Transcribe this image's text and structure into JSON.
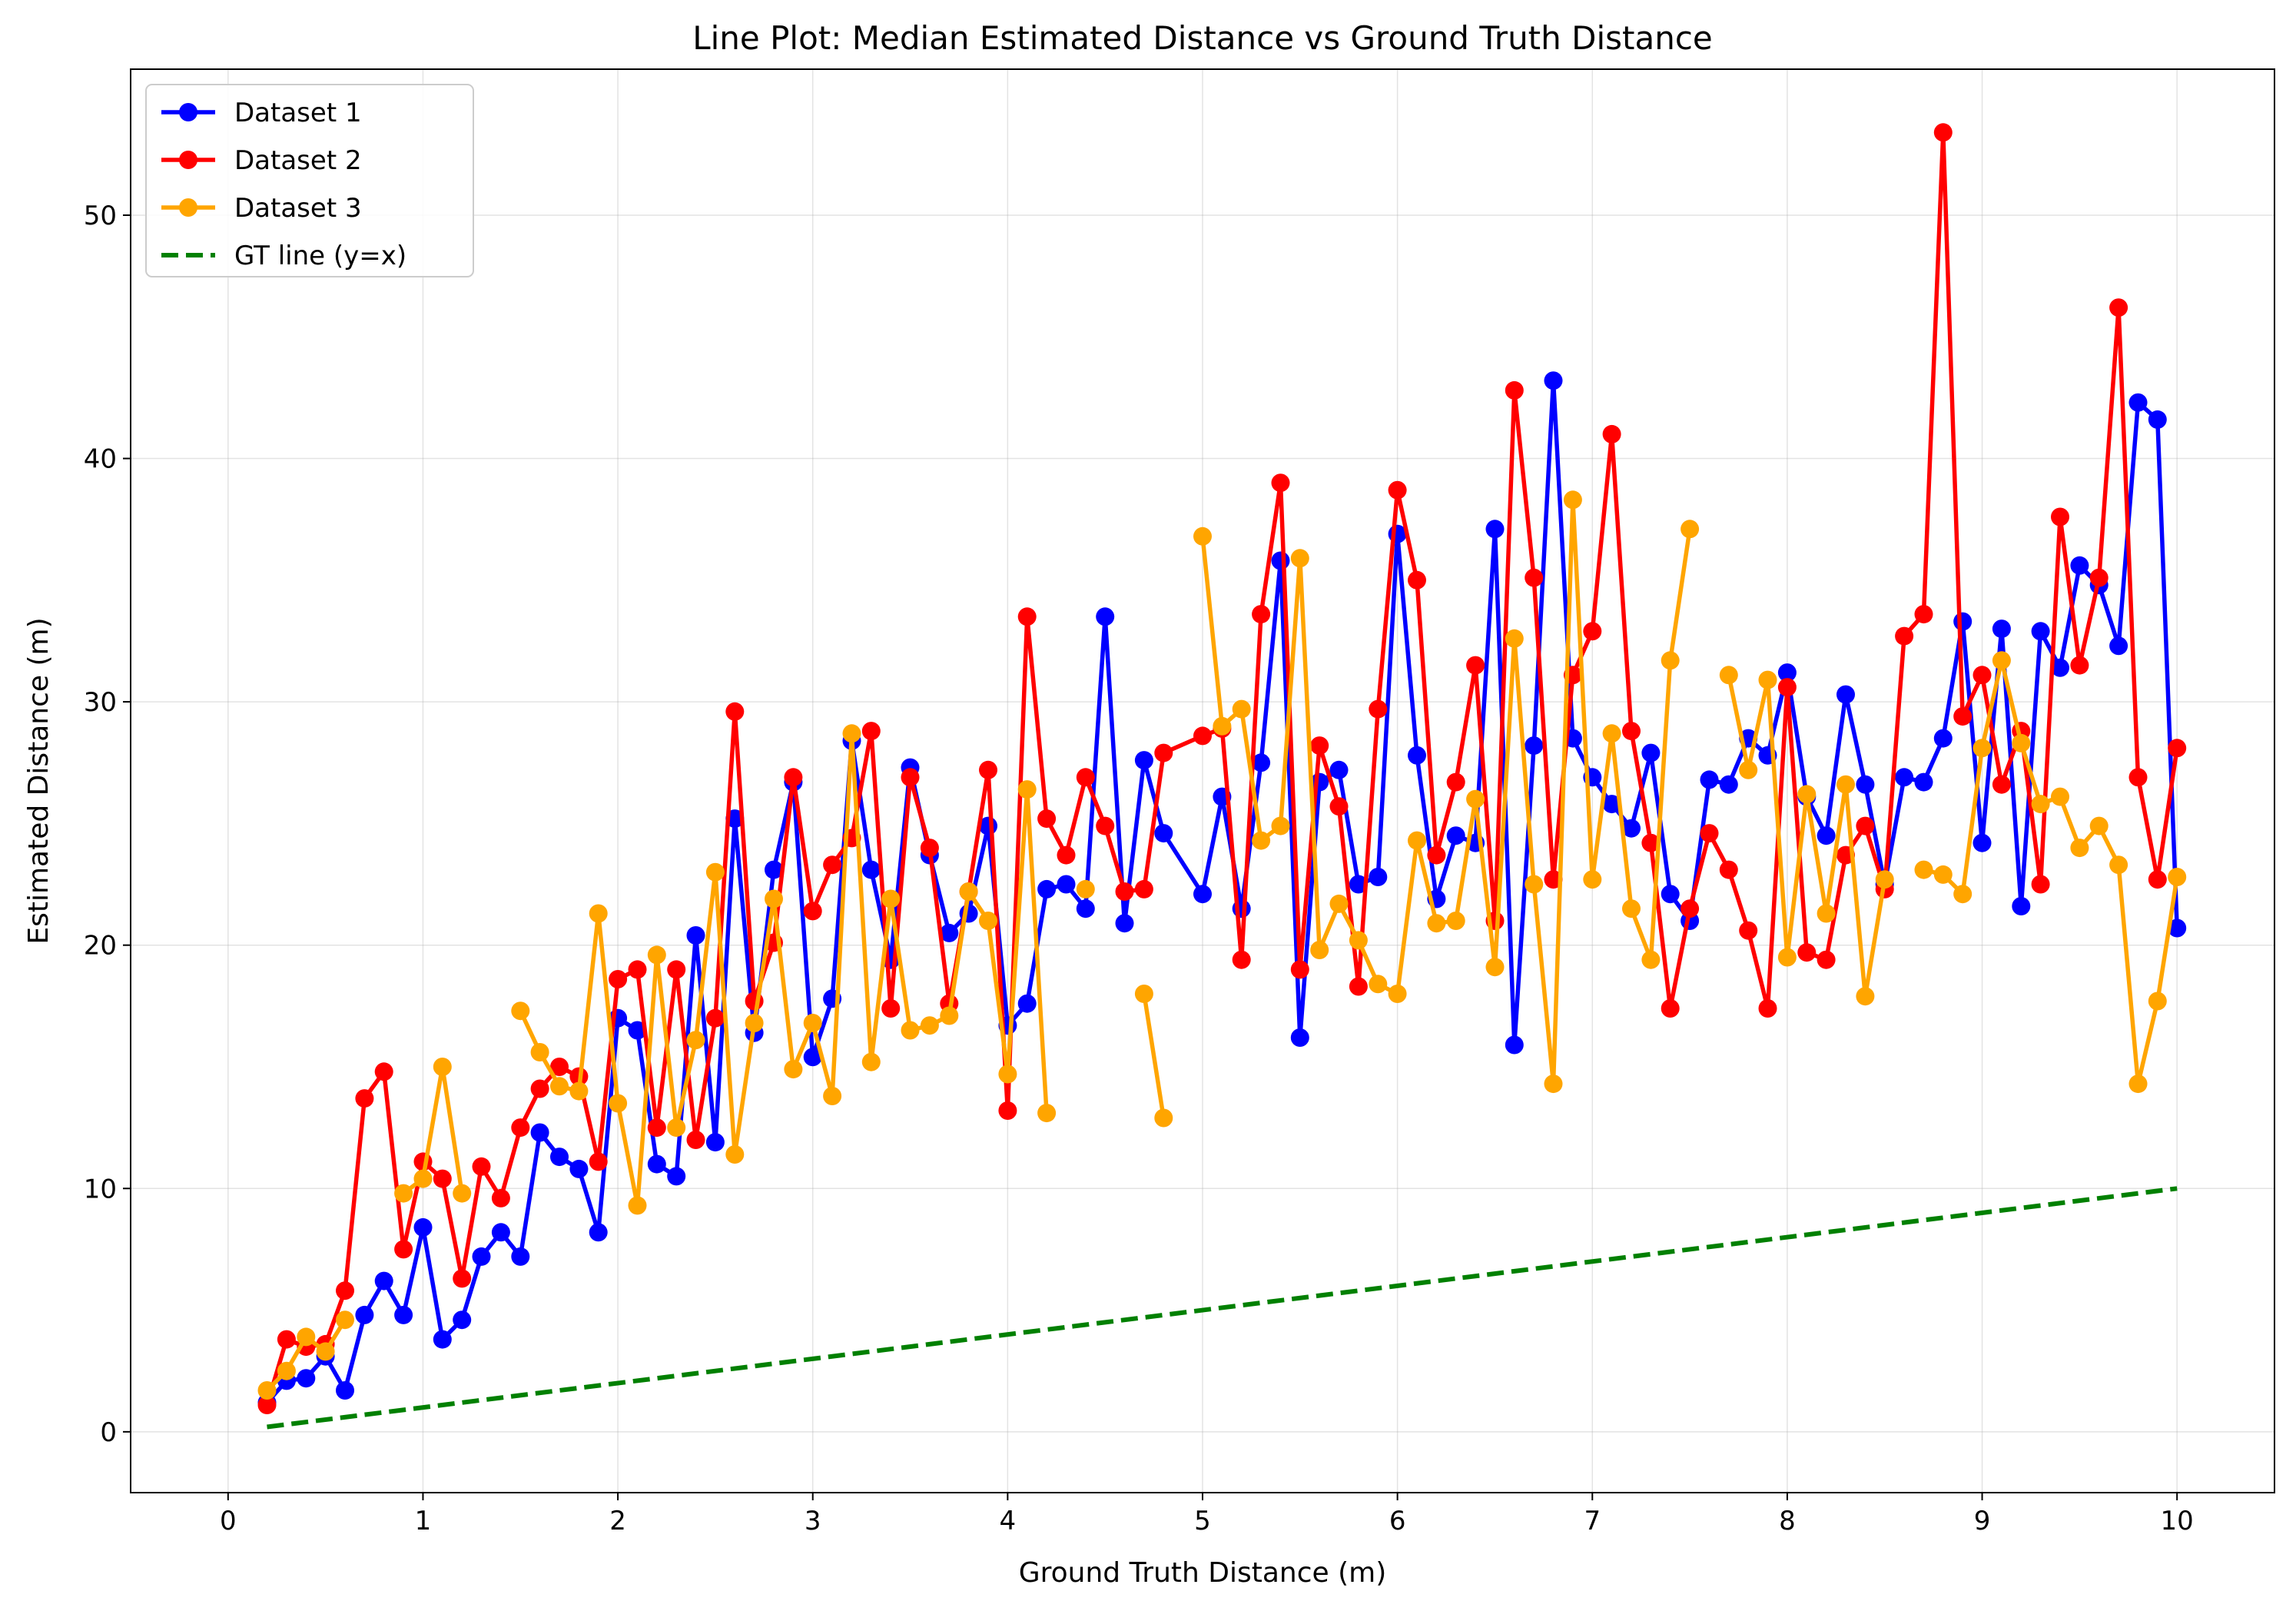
{
  "chart_data": {
    "type": "line",
    "title": "Line Plot: Median Estimated Distance vs Ground Truth Distance",
    "xlabel": "Ground Truth Distance (m)",
    "ylabel": "Estimated Distance (m)",
    "xlim": [
      -0.5,
      10.5
    ],
    "ylim": [
      -2.5,
      56
    ],
    "xticks": [
      0,
      1,
      2,
      3,
      4,
      5,
      6,
      7,
      8,
      9,
      10
    ],
    "xtick_labels": [
      "0",
      "1",
      "2",
      "3",
      "4",
      "5",
      "6",
      "7",
      "8",
      "9",
      "10"
    ],
    "yticks": [
      0,
      10,
      20,
      30,
      40,
      50
    ],
    "ytick_labels": [
      "0",
      "10",
      "20",
      "30",
      "40",
      "50"
    ],
    "grid": true,
    "legend_position": "top-left",
    "series": [
      {
        "name": "Dataset 1",
        "color": "#0000ff",
        "marker": "circle",
        "linestyle": "solid",
        "points": [
          [
            0.2,
            1.2
          ],
          [
            0.3,
            2.1
          ],
          [
            0.4,
            2.2
          ],
          [
            0.5,
            3.1
          ],
          [
            0.6,
            1.7
          ],
          [
            0.7,
            4.8
          ],
          [
            0.8,
            6.2
          ],
          [
            0.9,
            4.8
          ],
          [
            1.0,
            8.4
          ],
          [
            1.1,
            3.8
          ],
          [
            1.2,
            4.6
          ],
          [
            1.3,
            7.2
          ],
          [
            1.4,
            8.2
          ],
          [
            1.5,
            7.2
          ],
          [
            1.6,
            12.3
          ],
          [
            1.7,
            11.3
          ],
          [
            1.8,
            10.8
          ],
          [
            1.9,
            8.2
          ],
          [
            2.0,
            17.0
          ],
          [
            2.1,
            16.5
          ],
          [
            2.2,
            11.0
          ],
          [
            2.3,
            10.5
          ],
          [
            2.4,
            20.4
          ],
          [
            2.5,
            11.9
          ],
          [
            2.6,
            25.2
          ],
          [
            2.7,
            16.4
          ],
          [
            2.8,
            23.1
          ],
          [
            2.9,
            26.7
          ],
          [
            3.0,
            15.4
          ],
          [
            3.1,
            17.8
          ],
          [
            3.2,
            28.4
          ],
          [
            3.3,
            23.1
          ],
          [
            3.4,
            19.4
          ],
          [
            3.5,
            27.3
          ],
          [
            3.6,
            23.7
          ],
          [
            3.7,
            20.5
          ],
          [
            3.8,
            21.3
          ],
          [
            3.9,
            24.9
          ],
          [
            4.0,
            16.7
          ],
          [
            4.1,
            17.6
          ],
          [
            4.2,
            22.3
          ],
          [
            4.3,
            22.5
          ],
          [
            4.4,
            21.5
          ],
          [
            4.5,
            33.5
          ],
          [
            4.6,
            20.9
          ],
          [
            4.7,
            27.6
          ],
          [
            4.8,
            24.6
          ],
          [
            5.0,
            22.1
          ],
          [
            5.1,
            26.1
          ],
          [
            5.2,
            21.5
          ],
          [
            5.3,
            27.5
          ],
          [
            5.4,
            35.8
          ],
          [
            5.5,
            16.2
          ],
          [
            5.6,
            26.7
          ],
          [
            5.7,
            27.2
          ],
          [
            5.8,
            22.5
          ],
          [
            5.9,
            22.8
          ],
          [
            6.0,
            36.9
          ],
          [
            6.1,
            27.8
          ],
          [
            6.2,
            21.9
          ],
          [
            6.3,
            24.5
          ],
          [
            6.4,
            24.2
          ],
          [
            6.5,
            37.1
          ],
          [
            6.6,
            15.9
          ],
          [
            6.7,
            28.2
          ],
          [
            6.8,
            43.2
          ],
          [
            6.9,
            28.5
          ],
          [
            7.0,
            26.9
          ],
          [
            7.1,
            25.8
          ],
          [
            7.2,
            24.8
          ],
          [
            7.3,
            27.9
          ],
          [
            7.4,
            22.1
          ],
          [
            7.5,
            21.0
          ],
          [
            7.6,
            26.8
          ],
          [
            7.7,
            26.6
          ],
          [
            7.8,
            28.5
          ],
          [
            7.9,
            27.8
          ],
          [
            8.0,
            31.2
          ],
          [
            8.1,
            26.1
          ],
          [
            8.2,
            24.5
          ],
          [
            8.3,
            30.3
          ],
          [
            8.4,
            26.6
          ],
          [
            8.5,
            22.5
          ],
          [
            8.6,
            26.9
          ],
          [
            8.7,
            26.7
          ],
          [
            8.8,
            28.5
          ],
          [
            8.9,
            33.3
          ],
          [
            9.0,
            24.2
          ],
          [
            9.1,
            33.0
          ],
          [
            9.2,
            21.6
          ],
          [
            9.3,
            32.9
          ],
          [
            9.4,
            31.4
          ],
          [
            9.5,
            35.6
          ],
          [
            9.6,
            34.8
          ],
          [
            9.7,
            32.3
          ],
          [
            9.8,
            42.3
          ],
          [
            9.9,
            41.6
          ],
          [
            10.0,
            20.7
          ]
        ]
      },
      {
        "name": "Dataset 2",
        "color": "#ff0000",
        "marker": "circle",
        "linestyle": "solid",
        "points": [
          [
            0.2,
            1.1
          ],
          [
            0.3,
            3.8
          ],
          [
            0.4,
            3.5
          ],
          [
            0.5,
            3.6
          ],
          [
            0.6,
            5.8
          ],
          [
            0.7,
            13.7
          ],
          [
            0.8,
            14.8
          ],
          [
            0.9,
            7.5
          ],
          [
            1.0,
            11.1
          ],
          [
            1.1,
            10.4
          ],
          [
            1.2,
            6.3
          ],
          [
            1.3,
            10.9
          ],
          [
            1.4,
            9.6
          ],
          [
            1.5,
            12.5
          ],
          [
            1.6,
            14.1
          ],
          [
            1.7,
            15.0
          ],
          [
            1.8,
            14.6
          ],
          [
            1.9,
            11.1
          ],
          [
            2.0,
            18.6
          ],
          [
            2.1,
            19.0
          ],
          [
            2.2,
            12.5
          ],
          [
            2.3,
            19.0
          ],
          [
            2.4,
            12.0
          ],
          [
            2.5,
            17.0
          ],
          [
            2.6,
            29.6
          ],
          [
            2.7,
            17.7
          ],
          [
            2.8,
            20.1
          ],
          [
            2.9,
            26.9
          ],
          [
            3.0,
            21.4
          ],
          [
            3.1,
            23.3
          ],
          [
            3.2,
            24.4
          ],
          [
            3.3,
            28.8
          ],
          [
            3.4,
            17.4
          ],
          [
            3.5,
            26.9
          ],
          [
            3.6,
            24.0
          ],
          [
            3.7,
            17.6
          ],
          [
            3.8,
            22.2
          ],
          [
            3.9,
            27.2
          ],
          [
            4.0,
            13.2
          ],
          [
            4.1,
            33.5
          ],
          [
            4.2,
            25.2
          ],
          [
            4.3,
            23.7
          ],
          [
            4.4,
            26.9
          ],
          [
            4.5,
            24.9
          ],
          [
            4.6,
            22.2
          ],
          [
            4.7,
            22.3
          ],
          [
            4.8,
            27.9
          ],
          [
            5.0,
            28.6
          ],
          [
            5.1,
            28.9
          ],
          [
            5.2,
            19.4
          ],
          [
            5.3,
            33.6
          ],
          [
            5.4,
            39.0
          ],
          [
            5.5,
            19.0
          ],
          [
            5.6,
            28.2
          ],
          [
            5.7,
            25.7
          ],
          [
            5.8,
            18.3
          ],
          [
            5.9,
            29.7
          ],
          [
            6.0,
            38.7
          ],
          [
            6.1,
            35.0
          ],
          [
            6.2,
            23.7
          ],
          [
            6.3,
            26.7
          ],
          [
            6.4,
            31.5
          ],
          [
            6.5,
            21.0
          ],
          [
            6.6,
            42.8
          ],
          [
            6.7,
            35.1
          ],
          [
            6.8,
            22.7
          ],
          [
            6.9,
            31.1
          ],
          [
            7.0,
            32.9
          ],
          [
            7.1,
            41.0
          ],
          [
            7.2,
            28.8
          ],
          [
            7.3,
            24.2
          ],
          [
            7.4,
            17.4
          ],
          [
            7.5,
            21.5
          ],
          [
            7.6,
            24.6
          ],
          [
            7.7,
            23.1
          ],
          [
            7.8,
            20.6
          ],
          [
            7.9,
            17.4
          ],
          [
            8.0,
            30.6
          ],
          [
            8.1,
            19.7
          ],
          [
            8.2,
            19.4
          ],
          [
            8.3,
            23.7
          ],
          [
            8.4,
            24.9
          ],
          [
            8.5,
            22.3
          ],
          [
            8.6,
            32.7
          ],
          [
            8.7,
            33.6
          ],
          [
            8.8,
            53.4
          ],
          [
            8.9,
            29.4
          ],
          [
            9.0,
            31.1
          ],
          [
            9.1,
            26.6
          ],
          [
            9.2,
            28.8
          ],
          [
            9.3,
            22.5
          ],
          [
            9.4,
            37.6
          ],
          [
            9.5,
            31.5
          ],
          [
            9.6,
            35.1
          ],
          [
            9.7,
            46.2
          ],
          [
            9.8,
            26.9
          ],
          [
            9.9,
            22.7
          ],
          [
            10.0,
            28.1
          ]
        ]
      },
      {
        "name": "Dataset 3",
        "color": "#ffa500",
        "marker": "circle",
        "linestyle": "solid",
        "segments": [
          [
            [
              0.2,
              1.7
            ],
            [
              0.3,
              2.5
            ],
            [
              0.4,
              3.9
            ],
            [
              0.5,
              3.3
            ],
            [
              0.6,
              4.6
            ]
          ],
          [
            [
              0.9,
              9.8
            ],
            [
              1.0,
              10.4
            ],
            [
              1.1,
              15.0
            ],
            [
              1.2,
              9.8
            ]
          ],
          [
            [
              1.5,
              17.3
            ],
            [
              1.6,
              15.6
            ],
            [
              1.7,
              14.2
            ],
            [
              1.8,
              14.0
            ],
            [
              1.9,
              21.3
            ],
            [
              2.0,
              13.5
            ],
            [
              2.1,
              9.3
            ],
            [
              2.2,
              19.6
            ],
            [
              2.3,
              12.5
            ],
            [
              2.4,
              16.1
            ],
            [
              2.5,
              23.0
            ],
            [
              2.6,
              11.4
            ],
            [
              2.7,
              16.8
            ],
            [
              2.8,
              21.9
            ],
            [
              2.9,
              14.9
            ],
            [
              3.0,
              16.8
            ],
            [
              3.1,
              13.8
            ],
            [
              3.2,
              28.7
            ],
            [
              3.3,
              15.2
            ],
            [
              3.4,
              21.9
            ],
            [
              3.5,
              16.5
            ],
            [
              3.6,
              16.7
            ],
            [
              3.7,
              17.1
            ],
            [
              3.8,
              22.2
            ],
            [
              3.9,
              21.0
            ],
            [
              4.0,
              14.7
            ],
            [
              4.1,
              26.4
            ],
            [
              4.2,
              13.1
            ]
          ],
          [
            [
              4.4,
              22.3
            ]
          ],
          [
            [
              4.7,
              18.0
            ],
            [
              4.8,
              12.9
            ]
          ],
          [
            [
              5.0,
              36.8
            ],
            [
              5.1,
              29.0
            ],
            [
              5.2,
              29.7
            ],
            [
              5.3,
              24.3
            ],
            [
              5.4,
              24.9
            ],
            [
              5.5,
              35.9
            ],
            [
              5.6,
              19.8
            ],
            [
              5.7,
              21.7
            ],
            [
              5.8,
              20.2
            ],
            [
              5.9,
              18.4
            ],
            [
              6.0,
              18.0
            ],
            [
              6.1,
              24.3
            ],
            [
              6.2,
              20.9
            ],
            [
              6.3,
              21.0
            ],
            [
              6.4,
              26.0
            ],
            [
              6.5,
              19.1
            ],
            [
              6.6,
              32.6
            ],
            [
              6.7,
              22.5
            ],
            [
              6.8,
              14.3
            ],
            [
              6.9,
              38.3
            ],
            [
              7.0,
              22.7
            ],
            [
              7.1,
              28.7
            ],
            [
              7.2,
              21.5
            ],
            [
              7.3,
              19.4
            ],
            [
              7.4,
              31.7
            ],
            [
              7.5,
              37.1
            ]
          ],
          [
            [
              7.7,
              31.1
            ],
            [
              7.8,
              27.2
            ],
            [
              7.9,
              30.9
            ],
            [
              8.0,
              19.5
            ],
            [
              8.1,
              26.2
            ],
            [
              8.2,
              21.3
            ],
            [
              8.3,
              26.6
            ],
            [
              8.4,
              17.9
            ],
            [
              8.5,
              22.7
            ]
          ],
          [
            [
              8.7,
              23.1
            ],
            [
              8.8,
              22.9
            ],
            [
              8.9,
              22.1
            ],
            [
              9.0,
              28.1
            ],
            [
              9.1,
              31.7
            ],
            [
              9.2,
              28.3
            ],
            [
              9.3,
              25.8
            ],
            [
              9.4,
              26.1
            ],
            [
              9.5,
              24.0
            ],
            [
              9.6,
              24.9
            ],
            [
              9.7,
              23.3
            ],
            [
              9.8,
              14.3
            ],
            [
              9.9,
              17.7
            ],
            [
              10.0,
              22.8
            ]
          ]
        ]
      },
      {
        "name": "GT line (y=x)",
        "color": "#008000",
        "marker": "none",
        "linestyle": "dashed",
        "points": [
          [
            0.2,
            0.2
          ],
          [
            10.0,
            10.0
          ]
        ]
      }
    ]
  }
}
